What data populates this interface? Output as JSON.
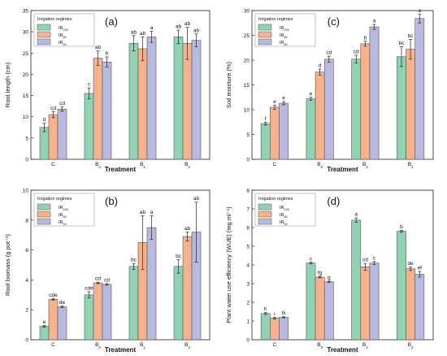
{
  "figure": {
    "xlabel": "Treatment"
  },
  "legend": {
    "title": "Irrigation regimes",
    "series": [
      "IR100",
      "IR80",
      "IR60"
    ],
    "colors": [
      "#8fd3b4",
      "#f6b28c",
      "#b7b9e0"
    ]
  },
  "chart_data": [
    {
      "type": "bar",
      "panel": "(a)",
      "title": "",
      "ylabel": "Root length (cm)",
      "xlabel": "Treatment",
      "categories": [
        "C",
        "B0",
        "B1",
        "B2"
      ],
      "ylim": [
        0,
        35
      ],
      "yticks": [
        0,
        5,
        10,
        15,
        20,
        25,
        30,
        35
      ],
      "legend_position": "top-left",
      "series": [
        {
          "name": "IR100",
          "values": [
            7.5,
            15.5,
            27.3,
            28.8
          ],
          "errors": [
            1.0,
            1.3,
            1.8,
            1.6
          ],
          "letters": [
            "d",
            "c",
            "ab",
            "ab"
          ]
        },
        {
          "name": "IR80",
          "values": [
            10.5,
            23.8,
            26.0,
            27.3
          ],
          "errors": [
            0.7,
            1.7,
            2.8,
            3.8
          ],
          "letters": [
            "cd",
            "ab",
            "ab",
            "ab"
          ]
        },
        {
          "name": "IR60",
          "values": [
            11.8,
            22.9,
            28.8,
            28.0
          ],
          "errors": [
            0.5,
            1.2,
            1.3,
            1.5
          ],
          "letters": [
            "cd",
            "b",
            "a",
            "ab"
          ]
        }
      ]
    },
    {
      "type": "bar",
      "panel": "(c)",
      "title": "",
      "ylabel": "Soil moisture (%)",
      "xlabel": "Treatment",
      "categories": [
        "C",
        "B0",
        "B1",
        "B2"
      ],
      "ylim": [
        0,
        30
      ],
      "yticks": [
        0,
        5,
        10,
        15,
        20,
        25,
        30
      ],
      "legend_position": "top-left",
      "series": [
        {
          "name": "IR100",
          "values": [
            7.2,
            12.2,
            20.2,
            20.7
          ],
          "errors": [
            0.3,
            0.3,
            0.8,
            2.0
          ],
          "letters": [
            "f",
            "e",
            "cd",
            "bc"
          ]
        },
        {
          "name": "IR80",
          "values": [
            10.5,
            17.6,
            23.3,
            22.2
          ],
          "errors": [
            0.4,
            0.6,
            0.5,
            2.0
          ],
          "letters": [
            "e",
            "d",
            "b",
            "bc"
          ]
        },
        {
          "name": "IR60",
          "values": [
            11.3,
            20.2,
            26.7,
            28.4
          ],
          "errors": [
            0.3,
            0.6,
            0.5,
            0.9
          ],
          "letters": [
            "e",
            "cd",
            "a",
            "a"
          ]
        }
      ]
    },
    {
      "type": "bar",
      "panel": "(b)",
      "title": "",
      "ylabel": "Root biomass (g pot⁻¹)",
      "xlabel": "Treatment",
      "categories": [
        "C",
        "B0",
        "B1",
        "B2"
      ],
      "ylim": [
        0,
        10
      ],
      "yticks": [
        0,
        2,
        4,
        6,
        8,
        10
      ],
      "legend_position": "top-left",
      "series": [
        {
          "name": "IR100",
          "values": [
            0.9,
            3.0,
            4.9,
            4.9
          ],
          "errors": [
            0.05,
            0.2,
            0.2,
            0.45
          ],
          "letters": [
            "e",
            "cde",
            "bc",
            "bc"
          ]
        },
        {
          "name": "IR80",
          "values": [
            2.7,
            3.8,
            6.5,
            6.9
          ],
          "errors": [
            0.05,
            0.05,
            1.8,
            0.3
          ],
          "letters": [
            "cde",
            "cd",
            "ab",
            "ab"
          ]
        },
        {
          "name": "IR60",
          "values": [
            2.2,
            3.7,
            7.5,
            7.2
          ],
          "errors": [
            0.05,
            0.05,
            0.8,
            2.0
          ],
          "letters": [
            "de",
            "cd",
            "a",
            "ab"
          ]
        }
      ]
    },
    {
      "type": "bar",
      "panel": "(d)",
      "title": "",
      "ylabel": "Plant water use efficiency (WUE) (mg ml⁻¹)",
      "xlabel": "Treatment",
      "categories": [
        "C",
        "B0",
        "B1",
        "B2"
      ],
      "ylim": [
        0,
        8
      ],
      "yticks": [
        0,
        1,
        2,
        3,
        4,
        5,
        6,
        7,
        8
      ],
      "legend_position": "top-left",
      "series": [
        {
          "name": "IR100",
          "values": [
            1.4,
            4.1,
            6.4,
            5.8
          ],
          "errors": [
            0.05,
            0.04,
            0.12,
            0.05
          ],
          "letters": [
            "h",
            "c",
            "a",
            "b"
          ]
        },
        {
          "name": "IR80",
          "values": [
            1.15,
            3.35,
            3.9,
            3.8
          ],
          "errors": [
            0.04,
            0.04,
            0.18,
            0.1
          ],
          "letters": [
            "i",
            "fg",
            "cd",
            "de"
          ]
        },
        {
          "name": "IR60",
          "values": [
            1.2,
            3.1,
            4.1,
            3.5
          ],
          "errors": [
            0.03,
            0.03,
            0.08,
            0.15
          ],
          "letters": [
            "hi",
            "g",
            "c",
            "ef"
          ]
        }
      ]
    }
  ]
}
